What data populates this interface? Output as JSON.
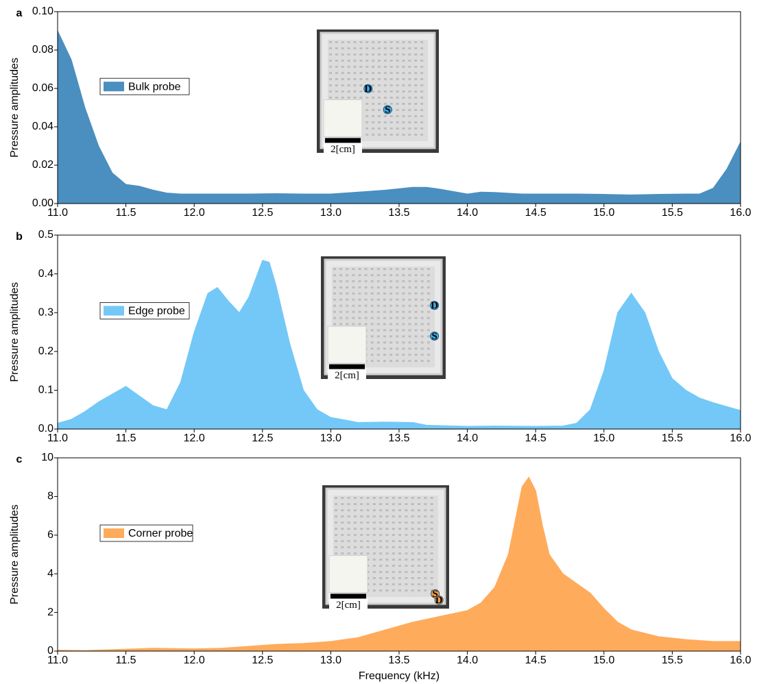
{
  "chart_data": [
    {
      "type": "area",
      "panel_label": "a",
      "ylabel": "Pressure amplitudes",
      "legend": "upper left",
      "x": [
        11.0,
        11.1,
        11.2,
        11.3,
        11.4,
        11.5,
        11.6,
        11.7,
        11.8,
        11.9,
        12.0,
        12.2,
        12.4,
        12.6,
        12.8,
        13.0,
        13.2,
        13.4,
        13.6,
        13.7,
        13.8,
        14.0,
        14.1,
        14.2,
        14.4,
        14.6,
        14.8,
        15.0,
        15.2,
        15.4,
        15.6,
        15.7,
        15.8,
        15.9,
        16.0
      ],
      "series": [
        {
          "name": "Bulk probe",
          "color": "#4a8fc0",
          "values": [
            0.09,
            0.075,
            0.05,
            0.03,
            0.016,
            0.01,
            0.009,
            0.007,
            0.0055,
            0.005,
            0.005,
            0.005,
            0.005,
            0.0052,
            0.005,
            0.005,
            0.006,
            0.007,
            0.0085,
            0.0085,
            0.0075,
            0.005,
            0.006,
            0.0058,
            0.005,
            0.005,
            0.005,
            0.0048,
            0.0045,
            0.0048,
            0.005,
            0.005,
            0.008,
            0.018,
            0.032
          ]
        }
      ],
      "xlim": [
        11.0,
        16.0
      ],
      "xticks": [
        {
          "value": 11,
          "label": "11.0"
        },
        11.5,
        {
          "value": 12,
          "label": "12.0"
        },
        12.5,
        {
          "value": 13,
          "label": "13.0"
        },
        13.5,
        {
          "value": 14,
          "label": "14.0"
        },
        14.5,
        {
          "value": 15,
          "label": "15.0"
        },
        15.5,
        {
          "value": 16,
          "label": "16.0"
        }
      ],
      "ylim": [
        0,
        0.1
      ],
      "yticks": [
        {
          "value": 0,
          "label": "0.00"
        },
        0.02,
        0.04,
        0.06,
        0.08,
        {
          "value": 0.1,
          "label": "0.10"
        }
      ],
      "inset": {
        "scale_label": "2[cm]",
        "source_label": "S",
        "detector_label": "D"
      }
    },
    {
      "type": "area",
      "panel_label": "b",
      "ylabel": "Pressure amplitudes",
      "legend": "upper left",
      "x": [
        11.0,
        11.1,
        11.2,
        11.3,
        11.4,
        11.5,
        11.6,
        11.7,
        11.8,
        11.9,
        12.0,
        12.1,
        12.17,
        12.25,
        12.33,
        12.4,
        12.5,
        12.55,
        12.6,
        12.7,
        12.8,
        12.9,
        13.0,
        13.2,
        13.4,
        13.6,
        13.7,
        14.0,
        14.2,
        14.5,
        14.7,
        14.8,
        14.9,
        15.0,
        15.1,
        15.2,
        15.3,
        15.4,
        15.5,
        15.6,
        15.7,
        15.8,
        15.9,
        16.0
      ],
      "series": [
        {
          "name": "Edge probe",
          "color": "#73c8f7",
          "values": [
            0.015,
            0.025,
            0.045,
            0.07,
            0.09,
            0.11,
            0.085,
            0.06,
            0.05,
            0.12,
            0.25,
            0.35,
            0.365,
            0.33,
            0.3,
            0.34,
            0.435,
            0.43,
            0.37,
            0.22,
            0.1,
            0.05,
            0.03,
            0.017,
            0.018,
            0.017,
            0.01,
            0.007,
            0.008,
            0.007,
            0.008,
            0.015,
            0.05,
            0.15,
            0.3,
            0.35,
            0.3,
            0.2,
            0.13,
            0.1,
            0.08,
            0.068,
            0.058,
            0.048
          ]
        }
      ],
      "xlim": [
        11.0,
        16.0
      ],
      "xticks": [
        {
          "value": 11,
          "label": "11.0"
        },
        11.5,
        {
          "value": 12,
          "label": "12.0"
        },
        12.5,
        {
          "value": 13,
          "label": "13.0"
        },
        13.5,
        {
          "value": 14,
          "label": "14.0"
        },
        14.5,
        {
          "value": 15,
          "label": "15.0"
        },
        15.5,
        {
          "value": 16,
          "label": "16.0"
        }
      ],
      "ylim": [
        0,
        0.5
      ],
      "yticks": [
        {
          "value": 0,
          "label": "0.0"
        },
        0.1,
        0.2,
        0.3,
        0.4,
        0.5
      ],
      "inset": {
        "scale_label": "2[cm]",
        "source_label": "S",
        "detector_label": "D"
      }
    },
    {
      "type": "area",
      "panel_label": "c",
      "ylabel": "Pressure amplitudes",
      "xlabel": "Frequency (kHz)",
      "legend": "upper left",
      "x": [
        11.0,
        11.2,
        11.5,
        11.7,
        12.0,
        12.2,
        12.4,
        12.6,
        12.8,
        13.0,
        13.2,
        13.4,
        13.6,
        13.8,
        14.0,
        14.1,
        14.2,
        14.3,
        14.4,
        14.45,
        14.5,
        14.55,
        14.6,
        14.7,
        14.8,
        14.9,
        15.0,
        15.1,
        15.2,
        15.4,
        15.6,
        15.8,
        16.0
      ],
      "series": [
        {
          "name": "Corner probe",
          "color": "#ffab5c",
          "values": [
            0.05,
            0.03,
            0.1,
            0.15,
            0.12,
            0.15,
            0.25,
            0.35,
            0.4,
            0.5,
            0.7,
            1.1,
            1.5,
            1.8,
            2.1,
            2.5,
            3.3,
            5.0,
            8.5,
            9.0,
            8.3,
            6.5,
            5.0,
            4.0,
            3.5,
            3.0,
            2.2,
            1.5,
            1.1,
            0.75,
            0.6,
            0.5,
            0.5
          ]
        }
      ],
      "xlim": [
        11.0,
        16.0
      ],
      "xticks": [
        {
          "value": 11,
          "label": "11.0"
        },
        11.5,
        {
          "value": 12,
          "label": "12.0"
        },
        12.5,
        {
          "value": 13,
          "label": "13.0"
        },
        13.5,
        {
          "value": 14,
          "label": "14.0"
        },
        14.5,
        {
          "value": 15,
          "label": "15.0"
        },
        15.5,
        {
          "value": 16,
          "label": "16.0"
        }
      ],
      "ylim": [
        0,
        10
      ],
      "yticks": [
        0,
        2,
        4,
        6,
        8,
        10
      ],
      "inset": {
        "scale_label": "2[cm]",
        "source_label": "S",
        "detector_label": "D"
      }
    }
  ]
}
